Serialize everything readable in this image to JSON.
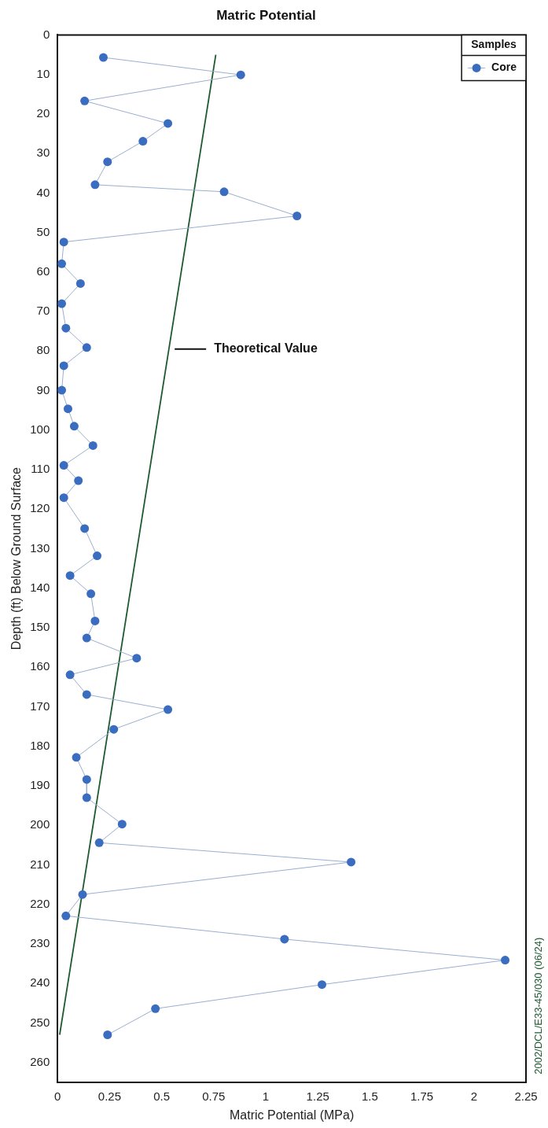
{
  "chart_data": {
    "type": "line",
    "title": "Matric Potential",
    "xlabel": "Matric Potential (MPa)",
    "ylabel": "Depth (ft) Below Ground Surface",
    "legend_title": "Samples",
    "legend": "top right",
    "grid": false,
    "marker": "circle",
    "xlim": [
      0,
      2.25
    ],
    "xticks": [
      0,
      0.25,
      0.5,
      0.75,
      1,
      1.25,
      1.5,
      1.75,
      2,
      2.25
    ],
    "ylim": [
      265,
      0
    ],
    "yticks": [
      0,
      10,
      20,
      30,
      40,
      50,
      60,
      70,
      80,
      90,
      100,
      110,
      120,
      130,
      140,
      150,
      160,
      170,
      180,
      190,
      200,
      210,
      220,
      230,
      240,
      250,
      260
    ],
    "series": [
      {
        "name": "Core",
        "color": "#3a6cc0",
        "x": [
          0.22,
          0.88,
          0.13,
          0.53,
          0.41,
          0.24,
          0.18,
          0.8,
          1.15,
          0.03,
          0.02,
          0.11,
          0.02,
          0.04,
          0.14,
          0.03,
          0.02,
          0.05,
          0.08,
          0.17,
          0.03,
          0.1,
          0.03,
          0.13,
          0.19,
          0.06,
          0.16,
          0.18,
          0.14,
          0.38,
          0.06,
          0.14,
          0.53,
          0.27,
          0.09,
          0.14,
          0.14,
          0.31,
          0.2,
          1.41,
          0.12,
          0.04,
          1.09,
          2.15,
          1.27,
          0.47,
          0.24
        ],
        "values": [
          5.7,
          10.1,
          16.7,
          22.4,
          26.9,
          32.1,
          37.9,
          39.7,
          45.8,
          52.4,
          57.9,
          62.9,
          68,
          74.2,
          79.1,
          83.7,
          89.9,
          94.6,
          99,
          103.9,
          108.9,
          112.8,
          117.1,
          124.9,
          131.8,
          136.8,
          141.4,
          148.3,
          152.6,
          157.7,
          161.9,
          166.9,
          170.7,
          175.7,
          182.8,
          188.4,
          193,
          199.7,
          204.4,
          209.3,
          217.5,
          222.9,
          228.8,
          234.1,
          240.3,
          246.4,
          253
        ]
      },
      {
        "name": "Theoretical Value",
        "color": "#1e5a30",
        "marker": "none",
        "x": [
          0.76,
          0.01
        ],
        "values": [
          5,
          253
        ]
      }
    ],
    "annotations": [
      "2002/DCL/E33-45/030 (06/24)"
    ]
  }
}
